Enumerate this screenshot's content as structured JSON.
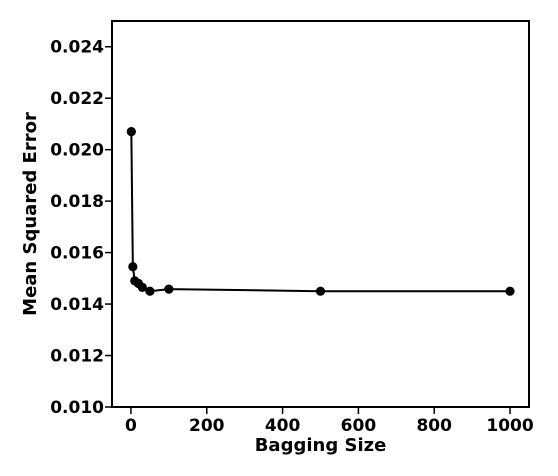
{
  "chart_data": {
    "type": "line",
    "title": "",
    "xlabel": "Bagging Size",
    "ylabel": "Mean Squared Error",
    "xlim": [
      -50,
      1050
    ],
    "ylim": [
      0.01,
      0.025
    ],
    "xticks": [
      0,
      200,
      400,
      600,
      800,
      1000
    ],
    "yticks": [
      0.01,
      0.012,
      0.014,
      0.016,
      0.018,
      0.02,
      0.022,
      0.024
    ],
    "xtick_labels": [
      "0",
      "200",
      "400",
      "600",
      "800",
      "1000"
    ],
    "ytick_labels": [
      "0.010",
      "0.012",
      "0.014",
      "0.016",
      "0.018",
      "0.020",
      "0.022",
      "0.024"
    ],
    "grid": false,
    "series": [
      {
        "color": "#000000",
        "marker": "circle",
        "x": [
          1,
          5,
          10,
          20,
          30,
          50,
          100,
          500,
          1000
        ],
        "y": [
          0.0207,
          0.01545,
          0.0149,
          0.0148,
          0.01465,
          0.0145,
          0.01458,
          0.0145,
          0.0145
        ]
      }
    ]
  }
}
